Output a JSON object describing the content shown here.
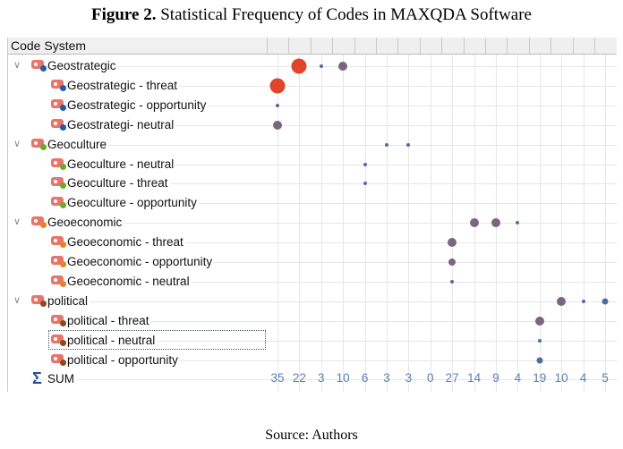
{
  "figure": {
    "label": "Figure 2.",
    "title": "Statistical Frequency of Codes in MAXQDA Software"
  },
  "source": "Source: Authors",
  "header": {
    "label": "Code System"
  },
  "colors": {
    "geostrategic": "#1f5fa8",
    "geoculture": "#6aaa2a",
    "geoeconomic": "#e8822a",
    "political": "#8b4a1c",
    "red": "#e0452b",
    "purple": "#7a6680",
    "blue": "#4e6f9e"
  },
  "rows": [
    {
      "label": "Geostrategic",
      "level": 0,
      "color": "#1f5fa8"
    },
    {
      "label": "Geostrategic - threat",
      "level": 1,
      "color": "#1f5fa8"
    },
    {
      "label": "Geostrategic - opportunity",
      "level": 1,
      "color": "#1f5fa8"
    },
    {
      "label": "Geostrategi- neutral",
      "level": 1,
      "color": "#1f5fa8"
    },
    {
      "label": "Geoculture",
      "level": 0,
      "color": "#6aaa2a"
    },
    {
      "label": "Geoculture - neutral",
      "level": 1,
      "color": "#6aaa2a"
    },
    {
      "label": "Geoculture - threat",
      "level": 1,
      "color": "#6aaa2a"
    },
    {
      "label": "Geoculture - opportunity",
      "level": 1,
      "color": "#6aaa2a"
    },
    {
      "label": "Geoeconomic",
      "level": 0,
      "color": "#e8822a"
    },
    {
      "label": "Geoeconomic - threat",
      "level": 1,
      "color": "#e8822a"
    },
    {
      "label": "Geoeconomic - opportunity",
      "level": 1,
      "color": "#e8822a"
    },
    {
      "label": "Geoeconomic - neutral",
      "level": 1,
      "color": "#e8822a"
    },
    {
      "label": "political",
      "level": 0,
      "color": "#8b4a1c"
    },
    {
      "label": "political - threat",
      "level": 1,
      "color": "#8b4a1c"
    },
    {
      "label": "political - neutral",
      "level": 1,
      "color": "#8b4a1c",
      "selected": true
    },
    {
      "label": "political - opportunity",
      "level": 1,
      "color": "#8b4a1c"
    }
  ],
  "sum": {
    "label": "SUM",
    "values": [
      "35",
      "22",
      "3",
      "10",
      "6",
      "3",
      "3",
      "0",
      "27",
      "14",
      "9",
      "4",
      "19",
      "10",
      "4",
      "5"
    ]
  },
  "cells": [
    {
      "row": 0,
      "col": 1,
      "size": "large",
      "color": "red"
    },
    {
      "row": 0,
      "col": 2,
      "size": "tiny",
      "color": "blue"
    },
    {
      "row": 0,
      "col": 3,
      "size": "medium",
      "color": "purple"
    },
    {
      "row": 1,
      "col": 0,
      "size": "large",
      "color": "red"
    },
    {
      "row": 2,
      "col": 0,
      "size": "tiny",
      "color": "blue"
    },
    {
      "row": 3,
      "col": 0,
      "size": "medium",
      "color": "purple"
    },
    {
      "row": 4,
      "col": 5,
      "size": "tiny",
      "color": "blue"
    },
    {
      "row": 4,
      "col": 6,
      "size": "tiny",
      "color": "blue"
    },
    {
      "row": 5,
      "col": 4,
      "size": "tiny",
      "color": "blue"
    },
    {
      "row": 6,
      "col": 4,
      "size": "tiny",
      "color": "blue"
    },
    {
      "row": 8,
      "col": 9,
      "size": "medium",
      "color": "purple"
    },
    {
      "row": 8,
      "col": 10,
      "size": "medium",
      "color": "purple"
    },
    {
      "row": 8,
      "col": 11,
      "size": "tiny",
      "color": "blue"
    },
    {
      "row": 9,
      "col": 8,
      "size": "medium",
      "color": "purple"
    },
    {
      "row": 10,
      "col": 8,
      "size": "smallmed",
      "color": "purple"
    },
    {
      "row": 11,
      "col": 8,
      "size": "tiny",
      "color": "blue"
    },
    {
      "row": 12,
      "col": 13,
      "size": "medium",
      "color": "purple"
    },
    {
      "row": 12,
      "col": 14,
      "size": "tiny",
      "color": "blue"
    },
    {
      "row": 12,
      "col": 15,
      "size": "small",
      "color": "blue"
    },
    {
      "row": 13,
      "col": 12,
      "size": "medium",
      "color": "purple"
    },
    {
      "row": 14,
      "col": 12,
      "size": "tiny",
      "color": "blue"
    },
    {
      "row": 15,
      "col": 12,
      "size": "small",
      "color": "blue"
    }
  ]
}
